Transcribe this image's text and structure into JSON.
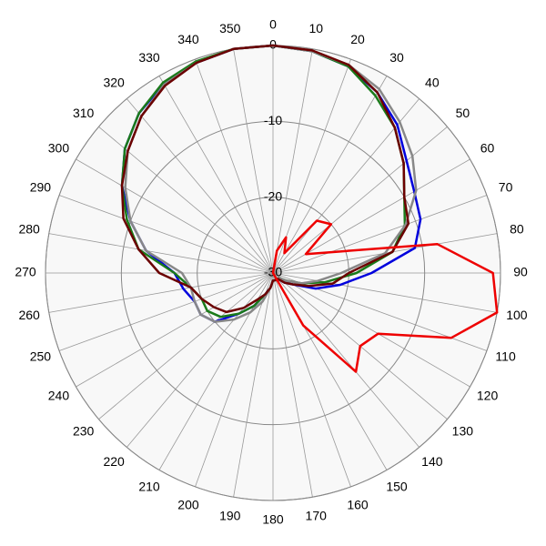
{
  "chart_data": {
    "type": "polar",
    "xticks": [
      0,
      10,
      20,
      30,
      40,
      50,
      60,
      70,
      80,
      90,
      100,
      110,
      120,
      130,
      140,
      150,
      160,
      170,
      180,
      190,
      200,
      210,
      220,
      230,
      240,
      250,
      260,
      270,
      280,
      290,
      300,
      310,
      320,
      330,
      340,
      350
    ],
    "ylim": [
      -30,
      0
    ],
    "yticks": [
      0,
      -10,
      -20,
      -30
    ],
    "grid": true,
    "series": [
      {
        "color": "#0000dd",
        "values": [
          0,
          -0.3,
          -1,
          -2.5,
          -4.5,
          -7,
          -8.5,
          -9.3,
          -11,
          -17,
          -21,
          -24,
          -27,
          -28,
          -29,
          -29,
          -29,
          -29,
          -29,
          -28,
          -27,
          -25,
          -23,
          -20,
          -19,
          -19,
          -18,
          -17,
          -13,
          -10,
          -7,
          -4.5,
          -2.5,
          -1.2,
          -0.5,
          0
        ]
      },
      {
        "color": "#1a7a1a",
        "values": [
          0,
          -0.3,
          -1,
          -3,
          -5,
          -7.5,
          -10,
          -11.5,
          -14,
          -19,
          -23,
          -26,
          -28,
          -29,
          -29,
          -29,
          -29,
          -29,
          -29,
          -28,
          -27,
          -25,
          -23,
          -21,
          -20,
          -20,
          -19,
          -17,
          -12,
          -9.5,
          -7,
          -4.5,
          -2.5,
          -1,
          -0.3,
          0
        ]
      },
      {
        "color": "#888888",
        "values": [
          0,
          -0.3,
          -0.8,
          -2,
          -4,
          -6,
          -8.2,
          -11.4,
          -15,
          -21,
          -24,
          -26,
          -28,
          -29,
          -29,
          -29,
          -29,
          -29,
          -29,
          -28,
          -26,
          -24,
          -22,
          -20,
          -19,
          -19,
          -19,
          -18,
          -13,
          -10,
          -7.5,
          -5,
          -3,
          -1.3,
          -0.5,
          0
        ]
      },
      {
        "color": "#6b0000",
        "values": [
          0,
          -0.2,
          -0.8,
          -2.5,
          -5,
          -7.5,
          -10,
          -11,
          -14,
          -20,
          -22,
          -25,
          -27,
          -28,
          -29,
          -29,
          -29,
          -29,
          -29,
          -28,
          -27,
          -26,
          -24,
          -22,
          -21,
          -20,
          -19,
          -15,
          -12,
          -9,
          -7,
          -5,
          -3,
          -1.5,
          -0.5,
          0
        ]
      },
      {
        "color": "#ee0000",
        "values": [
          -30,
          -27,
          -25,
          -27,
          -21,
          -20,
          -25,
          -22,
          -8,
          -1,
          0,
          -5,
          -14,
          -15,
          -13,
          -22,
          -30,
          -30,
          -30,
          -30,
          -30,
          -30,
          -30,
          -30,
          -30,
          -30,
          -30,
          -30,
          -30,
          -30,
          -30,
          -30,
          -30,
          -30,
          -30,
          -30
        ]
      }
    ]
  }
}
